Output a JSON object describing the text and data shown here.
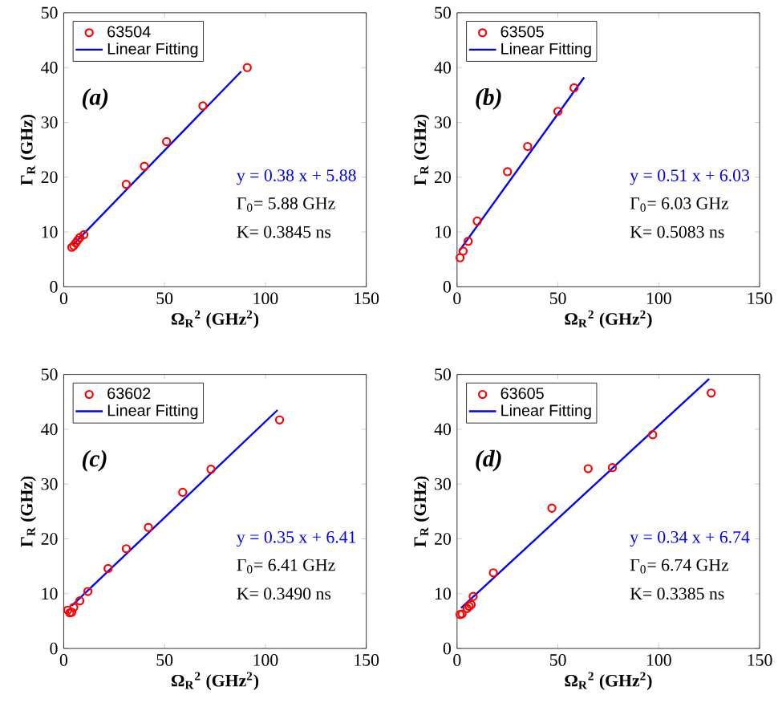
{
  "chart_data": [
    {
      "type": "scatter",
      "xlabel": "Ω$_{R}$$^{2}$ (GHz$^{2}$)",
      "ylabel": "Γ$_{R}$ (GHz)",
      "xlim": [
        0,
        150
      ],
      "ylim": [
        0,
        50
      ],
      "xticks": [
        0,
        50,
        100,
        150
      ],
      "yticks": [
        0,
        10,
        20,
        30,
        40,
        50
      ],
      "legend": "top left",
      "grid": false,
      "annotations": [
        "(a)",
        "y = 0.38 x + 5.88",
        "Γ$_{0}$= 5.88 GHz",
        "K= 0.3845 ns"
      ],
      "series": [
        {
          "name": "63504",
          "marker": "circle",
          "color": "#ff0000",
          "x": [
            4,
            5,
            6,
            7,
            8,
            10,
            31,
            40,
            51,
            69,
            91
          ],
          "values": [
            7.2,
            7.5,
            8,
            8.5,
            9,
            9.5,
            18.7,
            22,
            26.5,
            33,
            40
          ]
        },
        {
          "name": "Linear Fitting",
          "type": "line",
          "marker": "none",
          "color": "#0000ff",
          "x": [
            5,
            88
          ],
          "values": [
            7.8,
            39.3
          ]
        }
      ]
    },
    {
      "type": "scatter",
      "xlabel": "Ω$_{R}$$^{2}$ (GHz$^{2}$)",
      "ylabel": "Γ$_{R}$ (GHz)",
      "xlim": [
        0,
        150
      ],
      "ylim": [
        0,
        50
      ],
      "xticks": [
        0,
        50,
        100,
        150
      ],
      "yticks": [
        0,
        10,
        20,
        30,
        40,
        50
      ],
      "legend": "top left",
      "grid": false,
      "annotations": [
        "(b)",
        "y = 0.51 x + 6.03",
        "Γ$_{0}$= 6.03 GHz",
        "K= 0.5083 ns"
      ],
      "series": [
        {
          "name": "63505",
          "marker": "circle",
          "color": "#ff0000",
          "x": [
            1.5,
            3,
            5.5,
            10,
            25,
            35,
            50,
            58
          ],
          "values": [
            5.3,
            6.5,
            8.3,
            12,
            21,
            25.6,
            32,
            36.3
          ]
        },
        {
          "name": "Linear Fitting",
          "type": "line",
          "marker": "none",
          "color": "#0000ff",
          "x": [
            1,
            63
          ],
          "values": [
            6.5,
            38.2
          ]
        }
      ]
    },
    {
      "type": "scatter",
      "xlabel": "Ω$_{R}$$^{2}$ (GHz$^{2}$)",
      "ylabel": "Γ$_{R}$ (GHz)",
      "xlim": [
        0,
        150
      ],
      "ylim": [
        0,
        50
      ],
      "xticks": [
        0,
        50,
        100,
        150
      ],
      "yticks": [
        0,
        10,
        20,
        30,
        40,
        50
      ],
      "legend": "top left",
      "grid": false,
      "annotations": [
        "(c)",
        "y = 0.35 x + 6.41",
        "Γ$_{0}$= 6.41 GHz",
        "K= 0.3490 ns"
      ],
      "series": [
        {
          "name": "63602",
          "marker": "circle",
          "color": "#ff0000",
          "x": [
            2,
            3,
            4,
            5,
            8,
            12,
            22,
            31,
            42,
            59,
            73,
            107
          ],
          "values": [
            7,
            6.5,
            6.6,
            7.5,
            8.7,
            10.4,
            14.6,
            18.2,
            22.1,
            28.5,
            32.7,
            41.7
          ]
        },
        {
          "name": "Linear Fitting",
          "type": "line",
          "marker": "none",
          "color": "#0000ff",
          "x": [
            4,
            106
          ],
          "values": [
            7.8,
            43.5
          ]
        }
      ]
    },
    {
      "type": "scatter",
      "xlabel": "Ω$_{R}$$^{2}$ (GHz$^{2}$)",
      "ylabel": "Γ$_{R}$ (GHz)",
      "xlim": [
        0,
        150
      ],
      "ylim": [
        0,
        50
      ],
      "xticks": [
        0,
        50,
        100,
        150
      ],
      "yticks": [
        0,
        10,
        20,
        30,
        40,
        50
      ],
      "legend": "top left",
      "grid": false,
      "annotations": [
        "(d)",
        "y = 0.34 x + 6.74",
        "Γ$_{0}$= 6.74 GHz",
        "K= 0.3385 ns"
      ],
      "series": [
        {
          "name": "63605",
          "marker": "circle",
          "color": "#ff0000",
          "x": [
            1.5,
            2.5,
            5,
            6,
            7,
            8,
            18,
            47,
            65,
            77,
            97,
            126
          ],
          "values": [
            6.2,
            6.3,
            7.3,
            7.7,
            8,
            9.5,
            13.8,
            25.6,
            32.8,
            33,
            39,
            46.6
          ]
        },
        {
          "name": "Linear Fitting",
          "type": "line",
          "marker": "none",
          "color": "#0000ff",
          "x": [
            2,
            125
          ],
          "values": [
            7.4,
            49.2
          ]
        }
      ]
    }
  ]
}
